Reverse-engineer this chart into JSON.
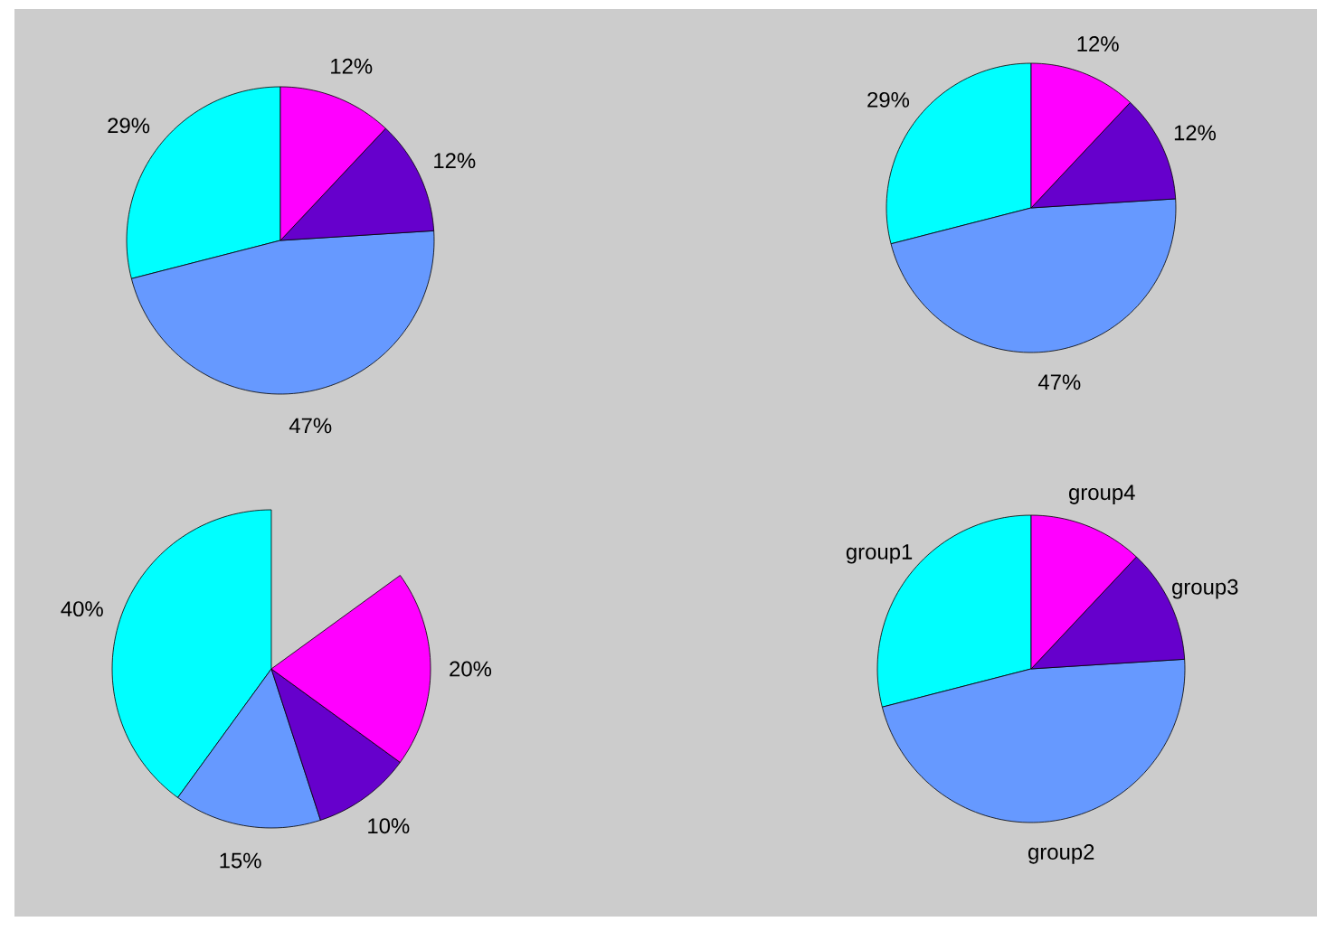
{
  "chart_data": [
    {
      "type": "pie",
      "categories": [
        null,
        null,
        null,
        null
      ],
      "values": [
        29,
        47,
        12,
        12
      ],
      "colors": [
        "#00ffff",
        "#6699ff",
        "#6600cc",
        "#ff00ff"
      ],
      "value_labels": [
        "29%",
        "47%",
        "12%",
        "12%"
      ]
    },
    {
      "type": "pie",
      "categories": [
        null,
        null,
        null,
        null
      ],
      "values": [
        29,
        47,
        12,
        12
      ],
      "colors": [
        "#00ffff",
        "#6699ff",
        "#6600cc",
        "#ff00ff"
      ],
      "value_labels": [
        "29%",
        "47%",
        "12%",
        "12%"
      ]
    },
    {
      "type": "pie",
      "categories": [
        null,
        null,
        null,
        null
      ],
      "values": [
        40,
        15,
        10,
        20
      ],
      "colors": [
        "#00ffff",
        "#6699ff",
        "#6600cc",
        "#ff00ff"
      ],
      "value_labels": [
        "40%",
        "15%",
        "10%",
        "20%"
      ]
    },
    {
      "type": "pie",
      "categories": [
        "group1",
        "group2",
        "group3",
        "group4"
      ],
      "values": [
        29,
        47,
        12,
        12
      ],
      "colors": [
        "#00ffff",
        "#6699ff",
        "#6600cc",
        "#ff00ff"
      ]
    }
  ]
}
